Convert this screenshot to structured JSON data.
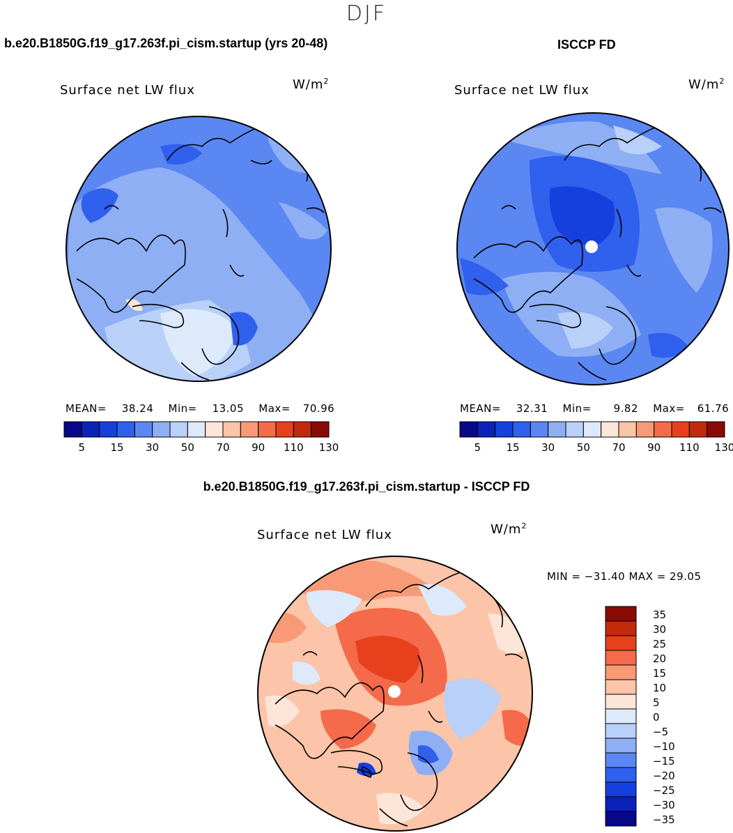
{
  "page": {
    "season": "DJF",
    "units": "W/m",
    "units_sup": "2"
  },
  "left_panel": {
    "case_title": "b.e20.B1850G.f19_g17.263f.pi_cism.startup (yrs 20-48)",
    "variable_title": "Surface net LW flux",
    "stats": {
      "mean": "38.24",
      "min": "13.05",
      "max": "70.96"
    },
    "stats_labels": {
      "mean": "MEAN=",
      "min": "Min=",
      "max": "Max="
    }
  },
  "right_panel": {
    "case_title": "ISCCP FD",
    "variable_title": "Surface net LW flux",
    "stats": {
      "mean": "32.31",
      "min": "9.82",
      "max": "61.76"
    },
    "stats_labels": {
      "mean": "MEAN=",
      "min": "Min=",
      "max": "Max="
    }
  },
  "diff_panel": {
    "case_title": "b.e20.B1850G.f19_g17.263f.pi_cism.startup - ISCCP FD",
    "variable_title": "Surface net LW flux",
    "min_max_text": "MIN = −31.40 MAX =  29.05"
  },
  "colors": {
    "abs_scale": [
      "#08088a",
      "#0a22b8",
      "#1540dd",
      "#2f60ee",
      "#5a87f2",
      "#8eaff4",
      "#b9d0f8",
      "#ddeafb",
      "#fde6d8",
      "#fcc4a8",
      "#f99a76",
      "#f46a4a",
      "#e8401c",
      "#c22a0c",
      "#8a0a05"
    ],
    "diff_scale": [
      "#08088a",
      "#0a22b8",
      "#1540dd",
      "#2f60ee",
      "#5a87f2",
      "#8eaff4",
      "#b9d0f8",
      "#ddeafb",
      "#fde6d8",
      "#fcc4a8",
      "#f99a76",
      "#f46a4a",
      "#e8401c",
      "#c22a0c",
      "#8a0a05"
    ]
  },
  "chart_data": [
    {
      "type": "heatmap",
      "projection": "north polar stereographic",
      "title": "Surface net LW flux",
      "subtitle": "b.e20.B1850G.f19_g17.263f.pi_cism.startup (yrs 20-48)",
      "units": "W/m2",
      "mean": 38.24,
      "min": 13.05,
      "max": 70.96,
      "colorbar_labels": [
        "5",
        "15",
        "30",
        "50",
        "70",
        "90",
        "110",
        "130"
      ]
    },
    {
      "type": "heatmap",
      "projection": "north polar stereographic",
      "title": "Surface net LW flux",
      "subtitle": "ISCCP FD",
      "units": "W/m2",
      "mean": 32.31,
      "min": 9.82,
      "max": 61.76,
      "colorbar_labels": [
        "5",
        "15",
        "30",
        "50",
        "70",
        "90",
        "110",
        "130"
      ]
    },
    {
      "type": "heatmap",
      "projection": "north polar stereographic",
      "title": "Surface net LW flux",
      "subtitle": "b.e20.B1850G.f19_g17.263f.pi_cism.startup - ISCCP FD",
      "units": "W/m2",
      "min": -31.4,
      "max": 29.05,
      "colorbar_labels": [
        "35",
        "30",
        "25",
        "20",
        "15",
        "10",
        "5",
        "0",
        "−5",
        "−10",
        "−15",
        "−20",
        "−25",
        "−30",
        "−35"
      ]
    }
  ]
}
